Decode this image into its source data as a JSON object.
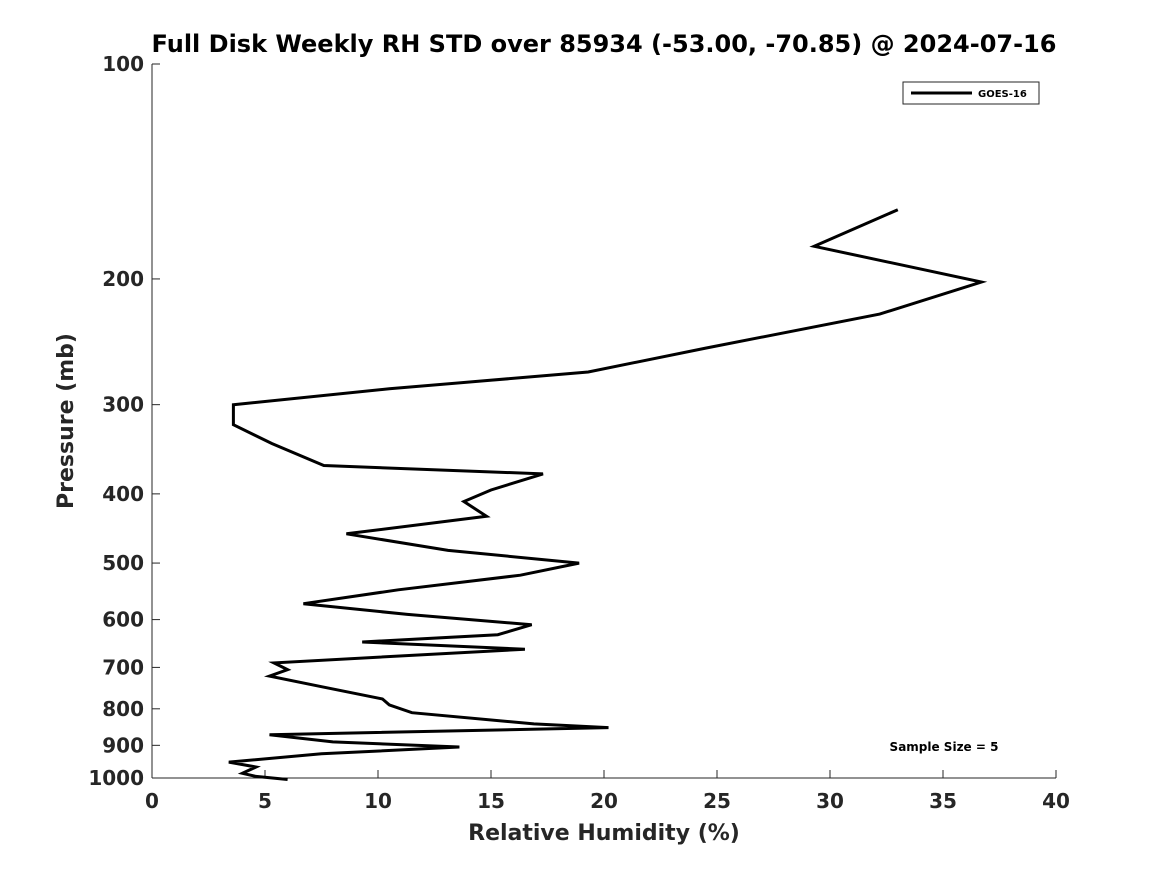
{
  "chart_data": {
    "type": "line",
    "title": "Full Disk Weekly RH STD over 85934 (-53.00, -70.85) @ 2024-07-16",
    "xlabel": "Relative Humidity (%)",
    "ylabel": "Pressure (mb)",
    "xlim": [
      0,
      40
    ],
    "ylim": [
      1000,
      100
    ],
    "yscale": "log",
    "grid": false,
    "xticks": [
      0,
      5,
      10,
      15,
      20,
      25,
      30,
      35,
      40
    ],
    "xtick_labels": [
      "0",
      "5",
      "10",
      "15",
      "20",
      "25",
      "30",
      "35",
      "40"
    ],
    "yticks": [
      100,
      200,
      300,
      400,
      500,
      600,
      700,
      800,
      900,
      1000
    ],
    "ytick_labels": [
      "100",
      "200",
      "300",
      "400",
      "500",
      "600",
      "700",
      "800",
      "900",
      "1000"
    ],
    "legend": {
      "placement": "top-right",
      "entries": [
        "GOES-16"
      ]
    },
    "annotation": "Sample Size = 5",
    "series": [
      {
        "name": "GOES-16",
        "color": "#000000",
        "x": [
          33.0,
          29.3,
          36.7,
          32.2,
          24.5,
          19.3,
          10.5,
          3.6,
          3.6,
          5.3,
          7.6,
          17.3,
          15.0,
          13.8,
          14.8,
          8.6,
          13.1,
          18.9,
          16.3,
          10.9,
          6.7,
          11.3,
          16.8,
          15.3,
          9.3,
          16.5,
          5.4,
          6.0,
          5.2,
          7.5,
          10.2,
          10.5,
          11.5,
          16.9,
          20.2,
          5.2,
          8.0,
          13.6,
          7.5,
          3.4,
          4.6,
          4.0,
          4.6,
          6.0
        ],
        "y": [
          160,
          180,
          202,
          224,
          250,
          270,
          285,
          300,
          320,
          340,
          365,
          375,
          395,
          410,
          430,
          455,
          480,
          500,
          520,
          545,
          570,
          590,
          610,
          630,
          645,
          660,
          690,
          705,
          720,
          745,
          775,
          790,
          810,
          840,
          850,
          870,
          890,
          905,
          925,
          950,
          965,
          985,
          995,
          1005
        ]
      }
    ]
  }
}
